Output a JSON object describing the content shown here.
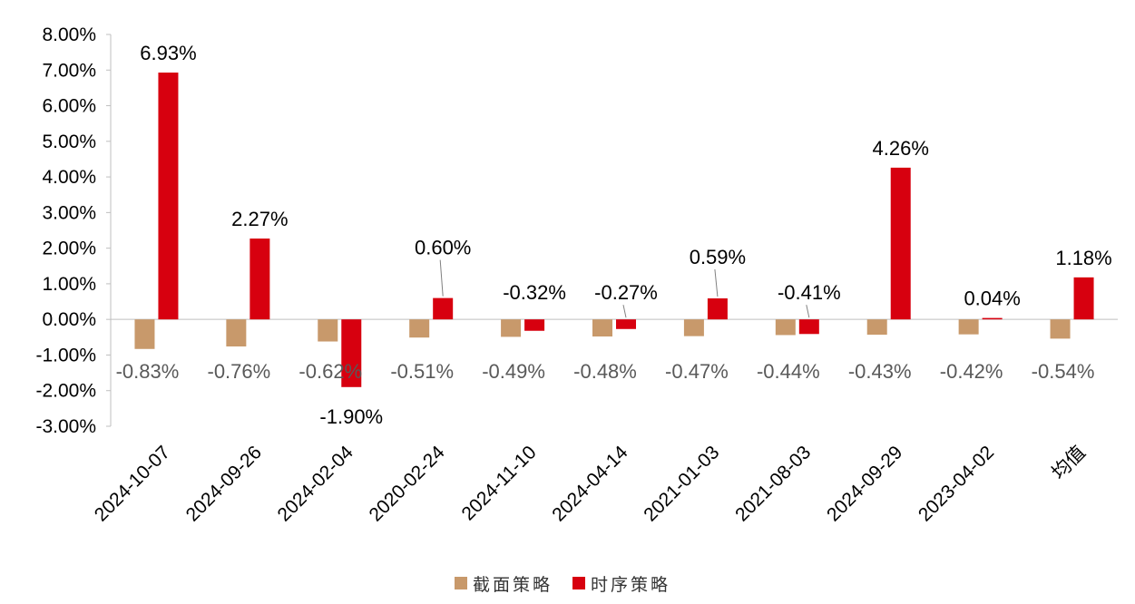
{
  "chart_data": {
    "type": "bar",
    "categories": [
      "2024-10-07",
      "2024-09-26",
      "2024-02-04",
      "2020-02-24",
      "2024-11-10",
      "2024-04-14",
      "2021-01-03",
      "2021-08-03",
      "2024-09-29",
      "2023-04-02",
      "均值"
    ],
    "series": [
      {
        "name": "截面策略",
        "color": "#c8996b",
        "values": [
          -0.83,
          -0.76,
          -0.62,
          -0.51,
          -0.49,
          -0.48,
          -0.47,
          -0.44,
          -0.43,
          -0.42,
          -0.54
        ],
        "labels": [
          "-0.83%",
          "-0.76%",
          "-0.62%",
          "-0.51%",
          "-0.49%",
          "-0.48%",
          "-0.47%",
          "-0.44%",
          "-0.43%",
          "-0.42%",
          "-0.54%"
        ]
      },
      {
        "name": "时序策略",
        "color": "#d7000f",
        "values": [
          6.93,
          2.27,
          -1.9,
          0.6,
          -0.32,
          -0.27,
          0.59,
          -0.41,
          4.26,
          0.04,
          1.18
        ],
        "labels": [
          "6.93%",
          "2.27%",
          "-1.90%",
          "0.60%",
          "-0.32%",
          "-0.27%",
          "0.59%",
          "-0.41%",
          "4.26%",
          "0.04%",
          "1.18%"
        ]
      }
    ],
    "ylim": [
      -3,
      8
    ],
    "yticks": [
      "8.00%",
      "7.00%",
      "6.00%",
      "5.00%",
      "4.00%",
      "3.00%",
      "2.00%",
      "1.00%",
      "0.00%",
      "-1.00%",
      "-2.00%",
      "-3.00%"
    ],
    "grid": false,
    "legend_position": "bottom-center"
  }
}
